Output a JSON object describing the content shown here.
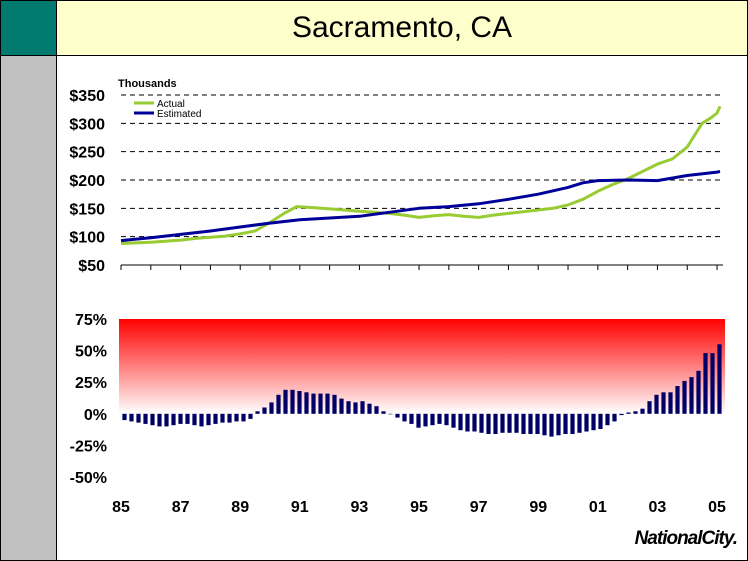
{
  "title": "Sacramento, CA",
  "logo_text": "NationalCity.",
  "chart_data": [
    {
      "type": "line",
      "units_label": "Thousands",
      "ylim": [
        50,
        350
      ],
      "yticks": [
        50,
        100,
        150,
        200,
        250,
        300,
        350
      ],
      "ytick_labels": [
        "$50",
        "$100",
        "$150",
        "$200",
        "$250",
        "$300",
        "$350"
      ],
      "grid": true,
      "legend_position": "top-left",
      "series": [
        {
          "name": "Actual",
          "color": "#99cc33",
          "points": [
            [
              1985.0,
              88
            ],
            [
              1986.0,
              90
            ],
            [
              1987.0,
              94
            ],
            [
              1987.5,
              97
            ],
            [
              1988.0,
              99
            ],
            [
              1988.5,
              101
            ],
            [
              1989.0,
              105
            ],
            [
              1989.5,
              110
            ],
            [
              1990.0,
              125
            ],
            [
              1990.5,
              142
            ],
            [
              1990.9,
              153
            ],
            [
              1991.5,
              151
            ],
            [
              1992.0,
              149
            ],
            [
              1992.5,
              147
            ],
            [
              1993.0,
              145
            ],
            [
              1993.5,
              143
            ],
            [
              1994.0,
              141
            ],
            [
              1994.5,
              138
            ],
            [
              1995.0,
              134
            ],
            [
              1995.5,
              137
            ],
            [
              1996.0,
              139
            ],
            [
              1996.5,
              136
            ],
            [
              1997.0,
              134
            ],
            [
              1997.5,
              138
            ],
            [
              1998.0,
              141
            ],
            [
              1998.5,
              144
            ],
            [
              1999.0,
              147
            ],
            [
              1999.5,
              150
            ],
            [
              2000.0,
              156
            ],
            [
              2000.5,
              166
            ],
            [
              2001.0,
              180
            ],
            [
              2001.5,
              192
            ],
            [
              2002.0,
              202
            ],
            [
              2002.5,
              215
            ],
            [
              2003.0,
              228
            ],
            [
              2003.5,
              237
            ],
            [
              2004.0,
              258
            ],
            [
              2004.5,
              300
            ],
            [
              2004.8,
              310
            ],
            [
              2005.0,
              318
            ],
            [
              2005.1,
              330
            ]
          ]
        },
        {
          "name": "Estimated",
          "color": "#000099",
          "points": [
            [
              1985.0,
              93
            ],
            [
              1986.0,
              98
            ],
            [
              1987.0,
              104
            ],
            [
              1988.0,
              110
            ],
            [
              1989.0,
              117
            ],
            [
              1990.0,
              124
            ],
            [
              1991.0,
              130
            ],
            [
              1992.0,
              133
            ],
            [
              1993.0,
              136
            ],
            [
              1994.0,
              143
            ],
            [
              1995.0,
              150
            ],
            [
              1996.0,
              153
            ],
            [
              1997.0,
              158
            ],
            [
              1998.0,
              166
            ],
            [
              1999.0,
              175
            ],
            [
              2000.0,
              187
            ],
            [
              2000.5,
              195
            ],
            [
              2001.0,
              199
            ],
            [
              2002.0,
              200
            ],
            [
              2003.0,
              199
            ],
            [
              2004.0,
              208
            ],
            [
              2005.0,
              214
            ],
            [
              2005.1,
              215
            ]
          ]
        }
      ]
    },
    {
      "type": "bar",
      "ylim": [
        -50,
        75
      ],
      "yticks": [
        -50,
        -25,
        0,
        25,
        50,
        75
      ],
      "ytick_labels": [
        "-50%",
        "-25%",
        "0%",
        "25%",
        "50%",
        "75%"
      ],
      "xlim": [
        1985,
        2005.2
      ],
      "xticks": [
        "85",
        "87",
        "89",
        "91",
        "93",
        "95",
        "97",
        "99",
        "01",
        "03",
        "05"
      ],
      "xtick_values": [
        1985,
        1987,
        1989,
        1991,
        1993,
        1995,
        1997,
        1999,
        2001,
        2003,
        2005
      ],
      "bar_color": "#000066",
      "band": {
        "from": 0,
        "to": 75,
        "color_top": "#ff0000",
        "color_bottom": "#ffffff"
      },
      "values": [
        -5,
        -6,
        -7,
        -8,
        -9,
        -10,
        -10,
        -9,
        -8,
        -8,
        -9,
        -10,
        -9,
        -8,
        -7,
        -7,
        -6,
        -6,
        -4,
        2,
        5,
        9,
        15,
        19,
        19,
        18,
        17,
        16,
        16,
        16,
        15,
        12,
        10,
        9,
        10,
        8,
        6,
        2,
        0,
        -3,
        -6,
        -8,
        -11,
        -10,
        -9,
        -8,
        -9,
        -11,
        -13,
        -14,
        -14,
        -15,
        -16,
        -16,
        -15,
        -15,
        -15,
        -16,
        -16,
        -16,
        -17,
        -18,
        -17,
        -16,
        -16,
        -15,
        -14,
        -13,
        -12,
        -9,
        -6,
        -1,
        1,
        2,
        4,
        10,
        15,
        17,
        17,
        22,
        26,
        29,
        34,
        48,
        48,
        55
      ]
    }
  ]
}
